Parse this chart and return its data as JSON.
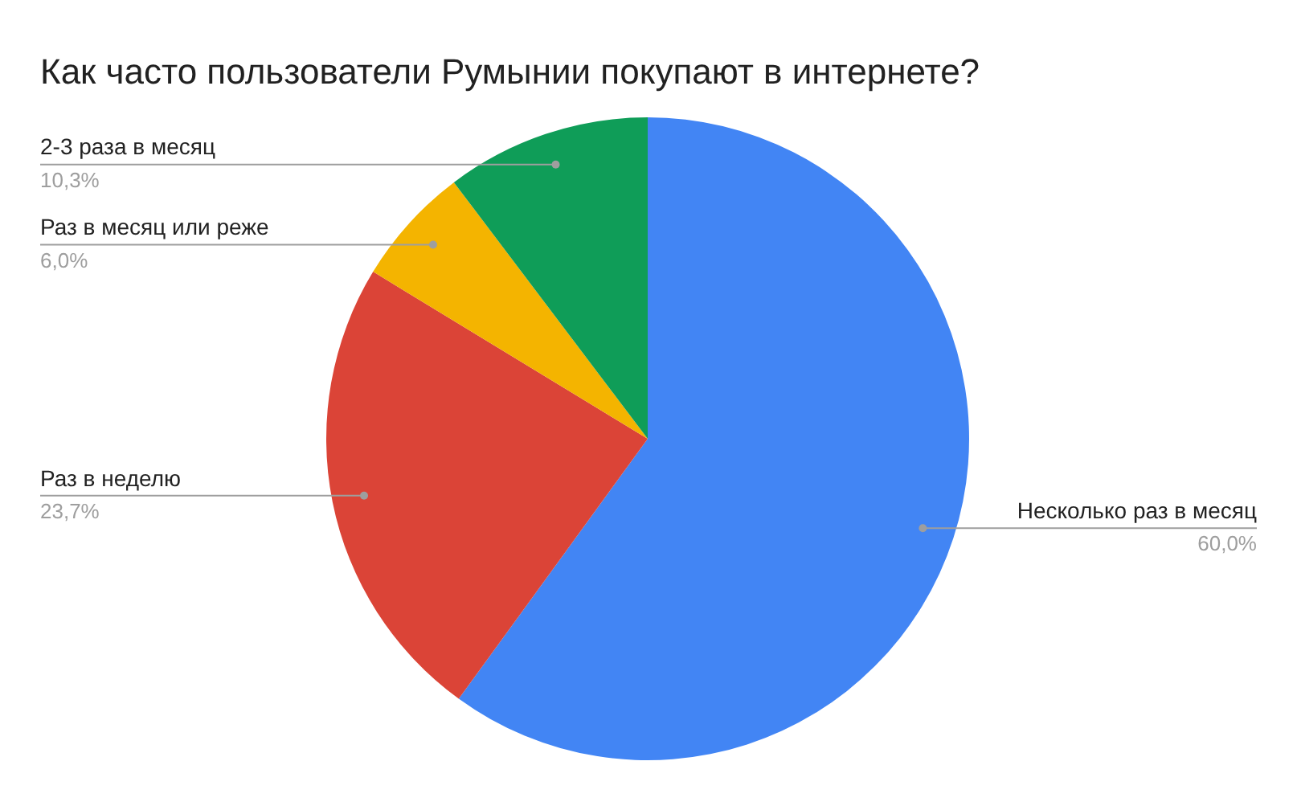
{
  "chart_data": {
    "type": "pie",
    "title": "Как часто пользователи Румынии покупают в интернете?",
    "categories": [
      "Несколько раз в месяц",
      "Раз в неделю",
      "Раз в месяц или реже",
      "2-3 раза в месяц"
    ],
    "values": [
      60.0,
      23.7,
      6.0,
      10.3
    ],
    "colors": [
      "#4285f4",
      "#db4437",
      "#f4b400",
      "#0f9d58"
    ],
    "value_labels": [
      "60,0%",
      "23,7%",
      "6,0%",
      "10,3%"
    ],
    "legend": false
  }
}
